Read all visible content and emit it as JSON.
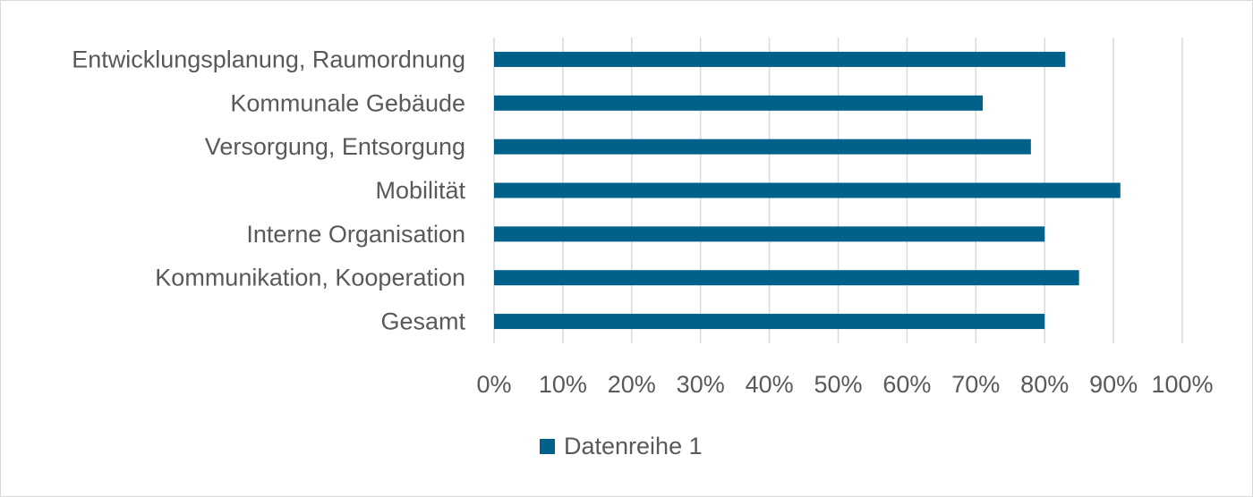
{
  "chart_data": {
    "type": "bar",
    "orientation": "horizontal",
    "categories": [
      "Entwicklungsplanung, Raumordnung",
      "Kommunale Gebäude",
      "Versorgung, Entsorgung",
      "Mobilität",
      "Interne Organisation",
      "Kommunikation, Kooperation",
      "Gesamt"
    ],
    "series": [
      {
        "name": "Datenreihe 1",
        "values": [
          0.83,
          0.71,
          0.78,
          0.91,
          0.8,
          0.85,
          0.8
        ],
        "color": "#00618A"
      }
    ],
    "xlim": [
      0,
      1
    ],
    "x_ticks": [
      0,
      0.1,
      0.2,
      0.3,
      0.4,
      0.5,
      0.6,
      0.7,
      0.8,
      0.9,
      1.0
    ],
    "x_tick_labels": [
      "0%",
      "10%",
      "20%",
      "30%",
      "40%",
      "50%",
      "60%",
      "70%",
      "80%",
      "90%",
      "100%"
    ],
    "title": "",
    "xlabel": "",
    "ylabel": "",
    "grid": "vertical",
    "grid_color": "#D9D9D9",
    "legend_position": "bottom"
  }
}
